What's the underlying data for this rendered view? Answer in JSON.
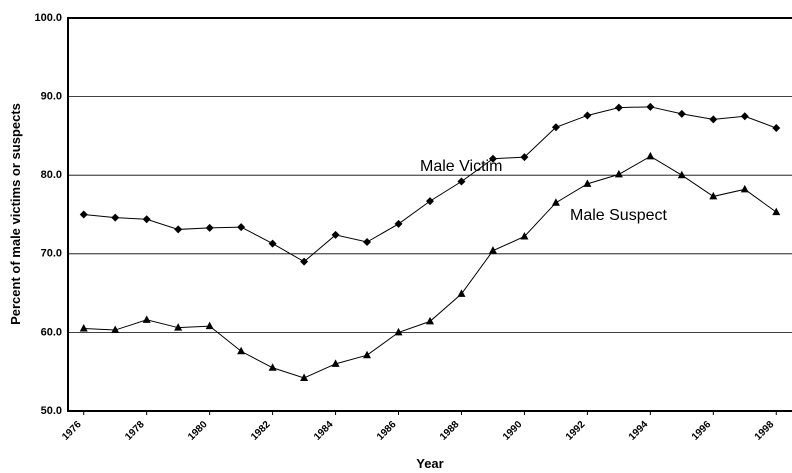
{
  "chart_data": {
    "type": "line",
    "x_label": "Year",
    "y_label": "Percent of male victims or suspects",
    "categories": [
      "1976",
      null,
      "1978",
      null,
      "1980",
      null,
      "1982",
      null,
      "1984",
      null,
      "1986",
      null,
      "1988",
      null,
      "1990",
      null,
      "1992",
      null,
      "1994",
      null,
      "1996",
      null,
      "1998"
    ],
    "series": [
      {
        "name": "Male Victim",
        "color": "#000000",
        "marker": "diamond",
        "values": [
          75.0,
          74.6,
          74.4,
          73.1,
          73.3,
          73.4,
          71.3,
          69.0,
          72.4,
          71.5,
          73.8,
          76.7,
          79.2,
          82.1,
          82.3,
          86.1,
          87.6,
          88.6,
          88.7,
          87.8,
          87.1,
          87.5,
          86.0
        ]
      },
      {
        "name": "Male Suspect",
        "color": "#000000",
        "marker": "triangle",
        "values": [
          60.5,
          60.3,
          61.6,
          60.6,
          60.8,
          57.6,
          55.5,
          54.2,
          56.0,
          57.1,
          60.0,
          61.4,
          64.9,
          70.4,
          72.2,
          76.5,
          78.9,
          80.1,
          82.4,
          80.0,
          77.3,
          78.2,
          75.3
        ]
      }
    ],
    "ylim": [
      50,
      100
    ],
    "yticks": [
      {
        "value": 50,
        "label": "50.0"
      },
      {
        "value": 60,
        "label": "60.0"
      },
      {
        "value": 70,
        "label": "70.0"
      },
      {
        "value": 80,
        "label": "80.0"
      },
      {
        "value": 90,
        "label": "90.0"
      },
      {
        "value": 100,
        "label": "100.0"
      }
    ],
    "grid": true
  }
}
